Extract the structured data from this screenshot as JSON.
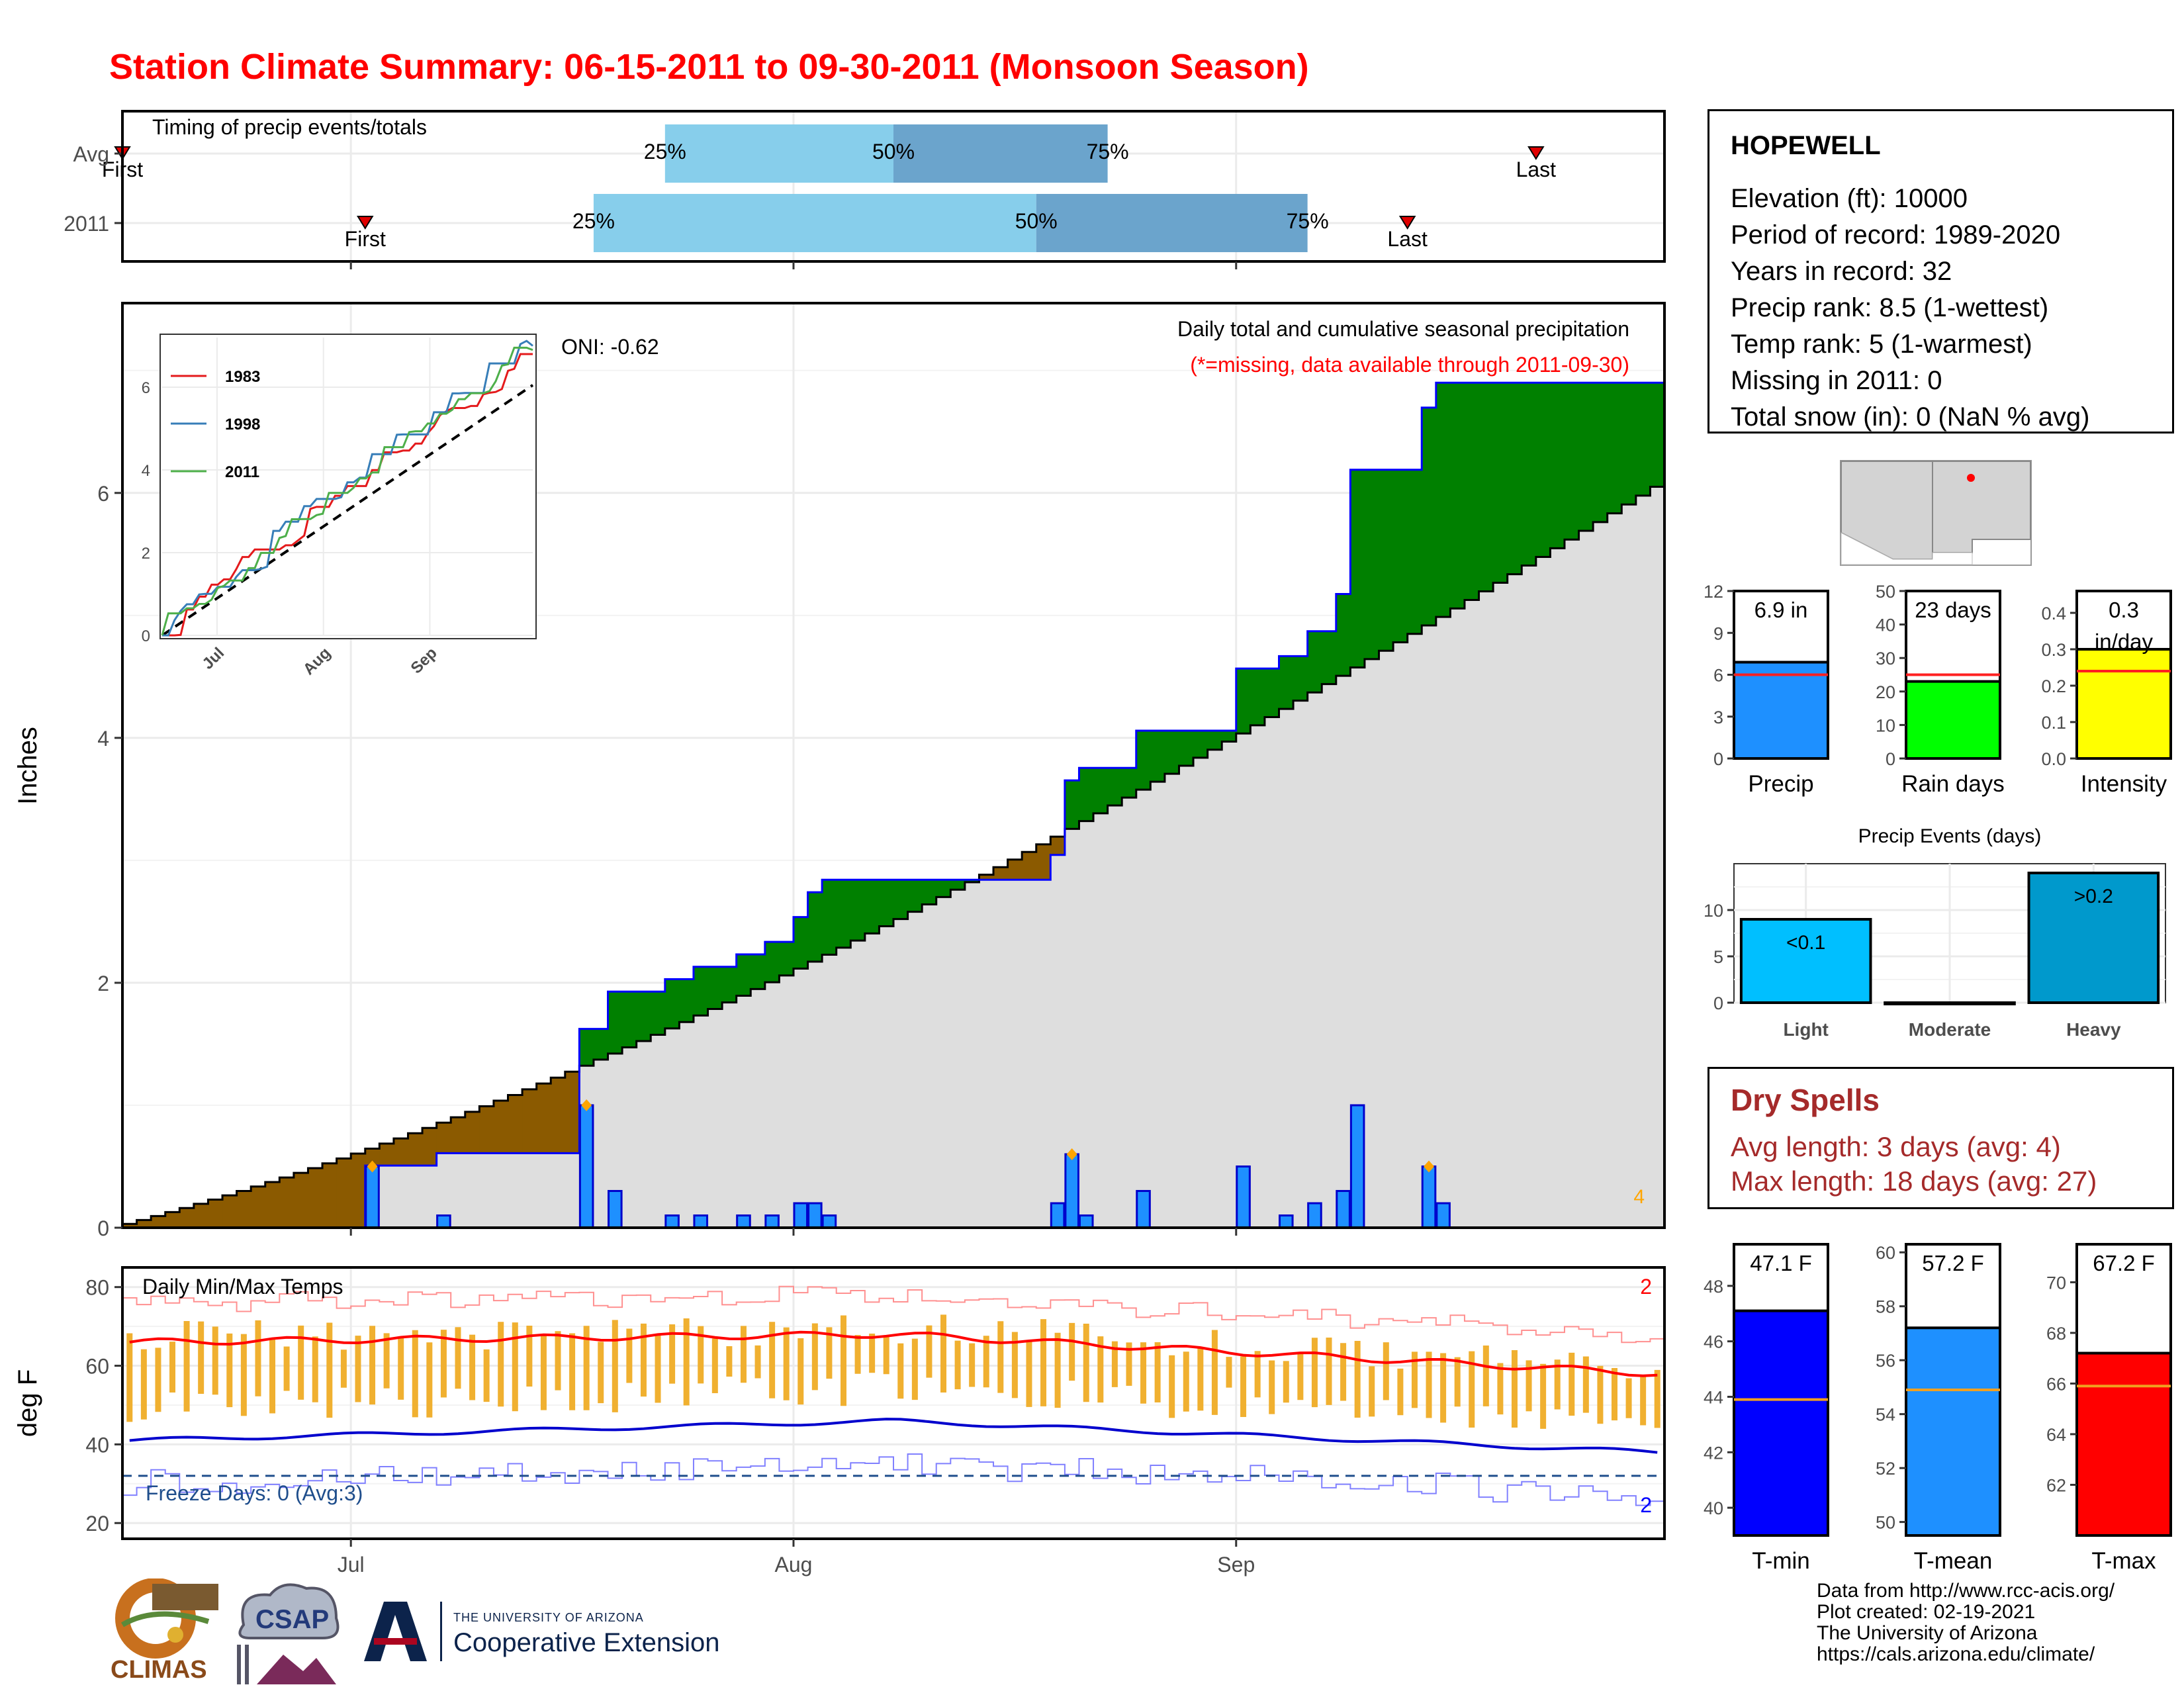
{
  "title": "Station Climate Summary: 06-15-2011 to 09-30-2011 (Monsoon Season)",
  "station": {
    "name": "HOPEWELL",
    "lines": [
      "Elevation (ft): 10000",
      "Period of record: 1989-2020",
      "Years in record: 32",
      "Precip rank: 8.5 (1-wettest)",
      "Temp rank: 5 (1-warmest)",
      "Missing in 2011: 0",
      "Total snow (in): 0 (NaN % avg)"
    ]
  },
  "dry_spells": {
    "title": "Dry Spells",
    "avg_length": "Avg length: 3 days (avg: 4)",
    "max_length": "Max length: 18 days (avg: 27)"
  },
  "credits": [
    "Data from http://www.rcc-acis.org/",
    "Plot created: 02-19-2021",
    "The University of Arizona",
    "https://cals.arizona.edu/climate/"
  ],
  "logos": {
    "climas": "CLIMAS",
    "csap": "CSAP",
    "uofa_small": "THE UNIVERSITY OF ARIZONA",
    "uofa_large": "Cooperative Extension"
  },
  "colors": {
    "title": "#ff0000",
    "avg_cum": "#dedede",
    "above": "#008000",
    "below": "#8b5a00",
    "daily_bar": "#1e90ff",
    "temp_range_bar": "#f0b030",
    "tmax_line": "#ff0000",
    "tmin_line": "#0000cd",
    "dry_spell_text": "#a52a2a"
  },
  "chart_data": [
    {
      "id": "timing",
      "type": "bar",
      "title": "Timing of precip events/totals",
      "rows": [
        {
          "label": "Avg",
          "first": "2011-06-15",
          "p25": "2011-07-23",
          "p50": "2011-08-08",
          "p75": "2011-08-23",
          "last": "2011-09-22"
        },
        {
          "label": "2011",
          "first": "2011-07-02",
          "p25": "2011-07-18",
          "p50": "2011-08-18",
          "p75": "2011-09-06",
          "last": "2011-09-13"
        }
      ],
      "quartile_labels": [
        "25%",
        "50%",
        "75%"
      ],
      "marker_labels": [
        "First",
        "Last"
      ]
    },
    {
      "id": "precip",
      "type": "area",
      "title": "Daily total and cumulative seasonal precipitation",
      "subtitle": "(*=missing, data available through 2011-09-30)",
      "ylabel": "Inches",
      "ylim": [
        0,
        7.55
      ],
      "yticks": [
        0,
        2,
        4,
        6
      ],
      "x_start": "2011-06-15",
      "x_end": "2011-09-30",
      "x_ticks": [
        "Jul",
        "Aug",
        "Sep"
      ],
      "oni": "ONI: -0.62",
      "corner_count": "4",
      "daily_precip": [
        {
          "date": "2011-07-02",
          "value": 0.5,
          "flag": true
        },
        {
          "date": "2011-07-07",
          "value": 0.1
        },
        {
          "date": "2011-07-17",
          "value": 1.0,
          "flag": true
        },
        {
          "date": "2011-07-19",
          "value": 0.3
        },
        {
          "date": "2011-07-23",
          "value": 0.1
        },
        {
          "date": "2011-07-25",
          "value": 0.1
        },
        {
          "date": "2011-07-28",
          "value": 0.1
        },
        {
          "date": "2011-07-30",
          "value": 0.1
        },
        {
          "date": "2011-08-01",
          "value": 0.2
        },
        {
          "date": "2011-08-02",
          "value": 0.2
        },
        {
          "date": "2011-08-03",
          "value": 0.1
        },
        {
          "date": "2011-08-19",
          "value": 0.2
        },
        {
          "date": "2011-08-20",
          "value": 0.6,
          "flag": true
        },
        {
          "date": "2011-08-21",
          "value": 0.1
        },
        {
          "date": "2011-08-25",
          "value": 0.3
        },
        {
          "date": "2011-09-01",
          "value": 0.5
        },
        {
          "date": "2011-09-04",
          "value": 0.1
        },
        {
          "date": "2011-09-06",
          "value": 0.2
        },
        {
          "date": "2011-09-08",
          "value": 0.3
        },
        {
          "date": "2011-09-09",
          "value": 1.0
        },
        {
          "date": "2011-09-14",
          "value": 0.5,
          "flag": true
        },
        {
          "date": "2011-09-15",
          "value": 0.2
        }
      ],
      "cumulative_2011_total": 6.9,
      "avg_cumulative_end": 6.05
    },
    {
      "id": "inset",
      "type": "line",
      "ylim": [
        0,
        7.2
      ],
      "yticks": [
        0,
        2,
        4,
        6
      ],
      "x_ticks": [
        "Jul",
        "Aug",
        "Sep"
      ],
      "series": [
        {
          "name": "1983",
          "color": "#e41a1c",
          "total": 6.8
        },
        {
          "name": "1998",
          "color": "#377eb8",
          "total": 7.0
        },
        {
          "name": "2011",
          "color": "#4daf4a",
          "total": 6.9
        }
      ]
    },
    {
      "id": "summary_bars",
      "type": "bar",
      "panels": [
        {
          "category": "Precip",
          "value": 6.9,
          "label": "6.9 in",
          "avg": 6.0,
          "ylim": [
            0,
            12
          ],
          "yticks": [
            0,
            3,
            6,
            9,
            12
          ],
          "color": "#1e90ff"
        },
        {
          "category": "Rain days",
          "value": 23,
          "label": "23 days",
          "avg": 25,
          "ylim": [
            0,
            50
          ],
          "yticks": [
            0,
            10,
            20,
            30,
            40,
            50
          ],
          "color": "#00ff00"
        },
        {
          "category": "Intensity",
          "value": 0.3,
          "label": "0.3\nin/day",
          "avg": 0.24,
          "ylim": [
            0,
            0.46
          ],
          "yticks": [
            0.0,
            0.1,
            0.2,
            0.3,
            0.4
          ],
          "color": "#ffff00"
        }
      ]
    },
    {
      "id": "events",
      "type": "bar",
      "title": "Precip Events (days)",
      "categories": [
        "Light",
        "Moderate",
        "Heavy"
      ],
      "values": [
        9,
        0,
        14
      ],
      "bar_labels": [
        "<0.1",
        "",
        ">0.2"
      ],
      "ylim": [
        0,
        15
      ],
      "yticks": [
        0,
        5,
        10
      ],
      "colors": [
        "#00bfff",
        "#00bfff",
        "#0099cc"
      ]
    },
    {
      "id": "temps",
      "type": "line",
      "title": "Daily Min/Max Temps",
      "ylabel": "deg F",
      "ylim": [
        16,
        85
      ],
      "yticks": [
        20,
        40,
        60,
        80
      ],
      "x_ticks": [
        "Jul",
        "Aug",
        "Sep"
      ],
      "freeze_line": 32,
      "freeze_label": "Freeze Days: 0 (Avg:3)",
      "count_top": "2",
      "count_bottom": "2",
      "avg_tmax_start": 66,
      "avg_tmax_mid": 68,
      "avg_tmax_end": 58,
      "avg_tmin_start": 41,
      "avg_tmin_mid": 46,
      "avg_tmin_end": 38
    },
    {
      "id": "temp_bars",
      "type": "bar",
      "panels": [
        {
          "category": "T-min",
          "value": 47.1,
          "label": "47.1 F",
          "avg": 43.9,
          "ylim": [
            39,
            49.5
          ],
          "yticks": [
            40,
            42,
            44,
            46,
            48
          ],
          "color": "#0000ff"
        },
        {
          "category": "T-mean",
          "value": 57.2,
          "label": "57.2 F",
          "avg": 54.9,
          "ylim": [
            49.5,
            60.3
          ],
          "yticks": [
            50,
            52,
            54,
            56,
            58,
            60
          ],
          "color": "#1e90ff"
        },
        {
          "category": "T-max",
          "value": 67.2,
          "label": "67.2 F",
          "avg": 65.9,
          "ylim": [
            60,
            71.5
          ],
          "yticks": [
            62,
            64,
            66,
            68,
            70
          ],
          "color": "#ff0000"
        }
      ]
    }
  ]
}
